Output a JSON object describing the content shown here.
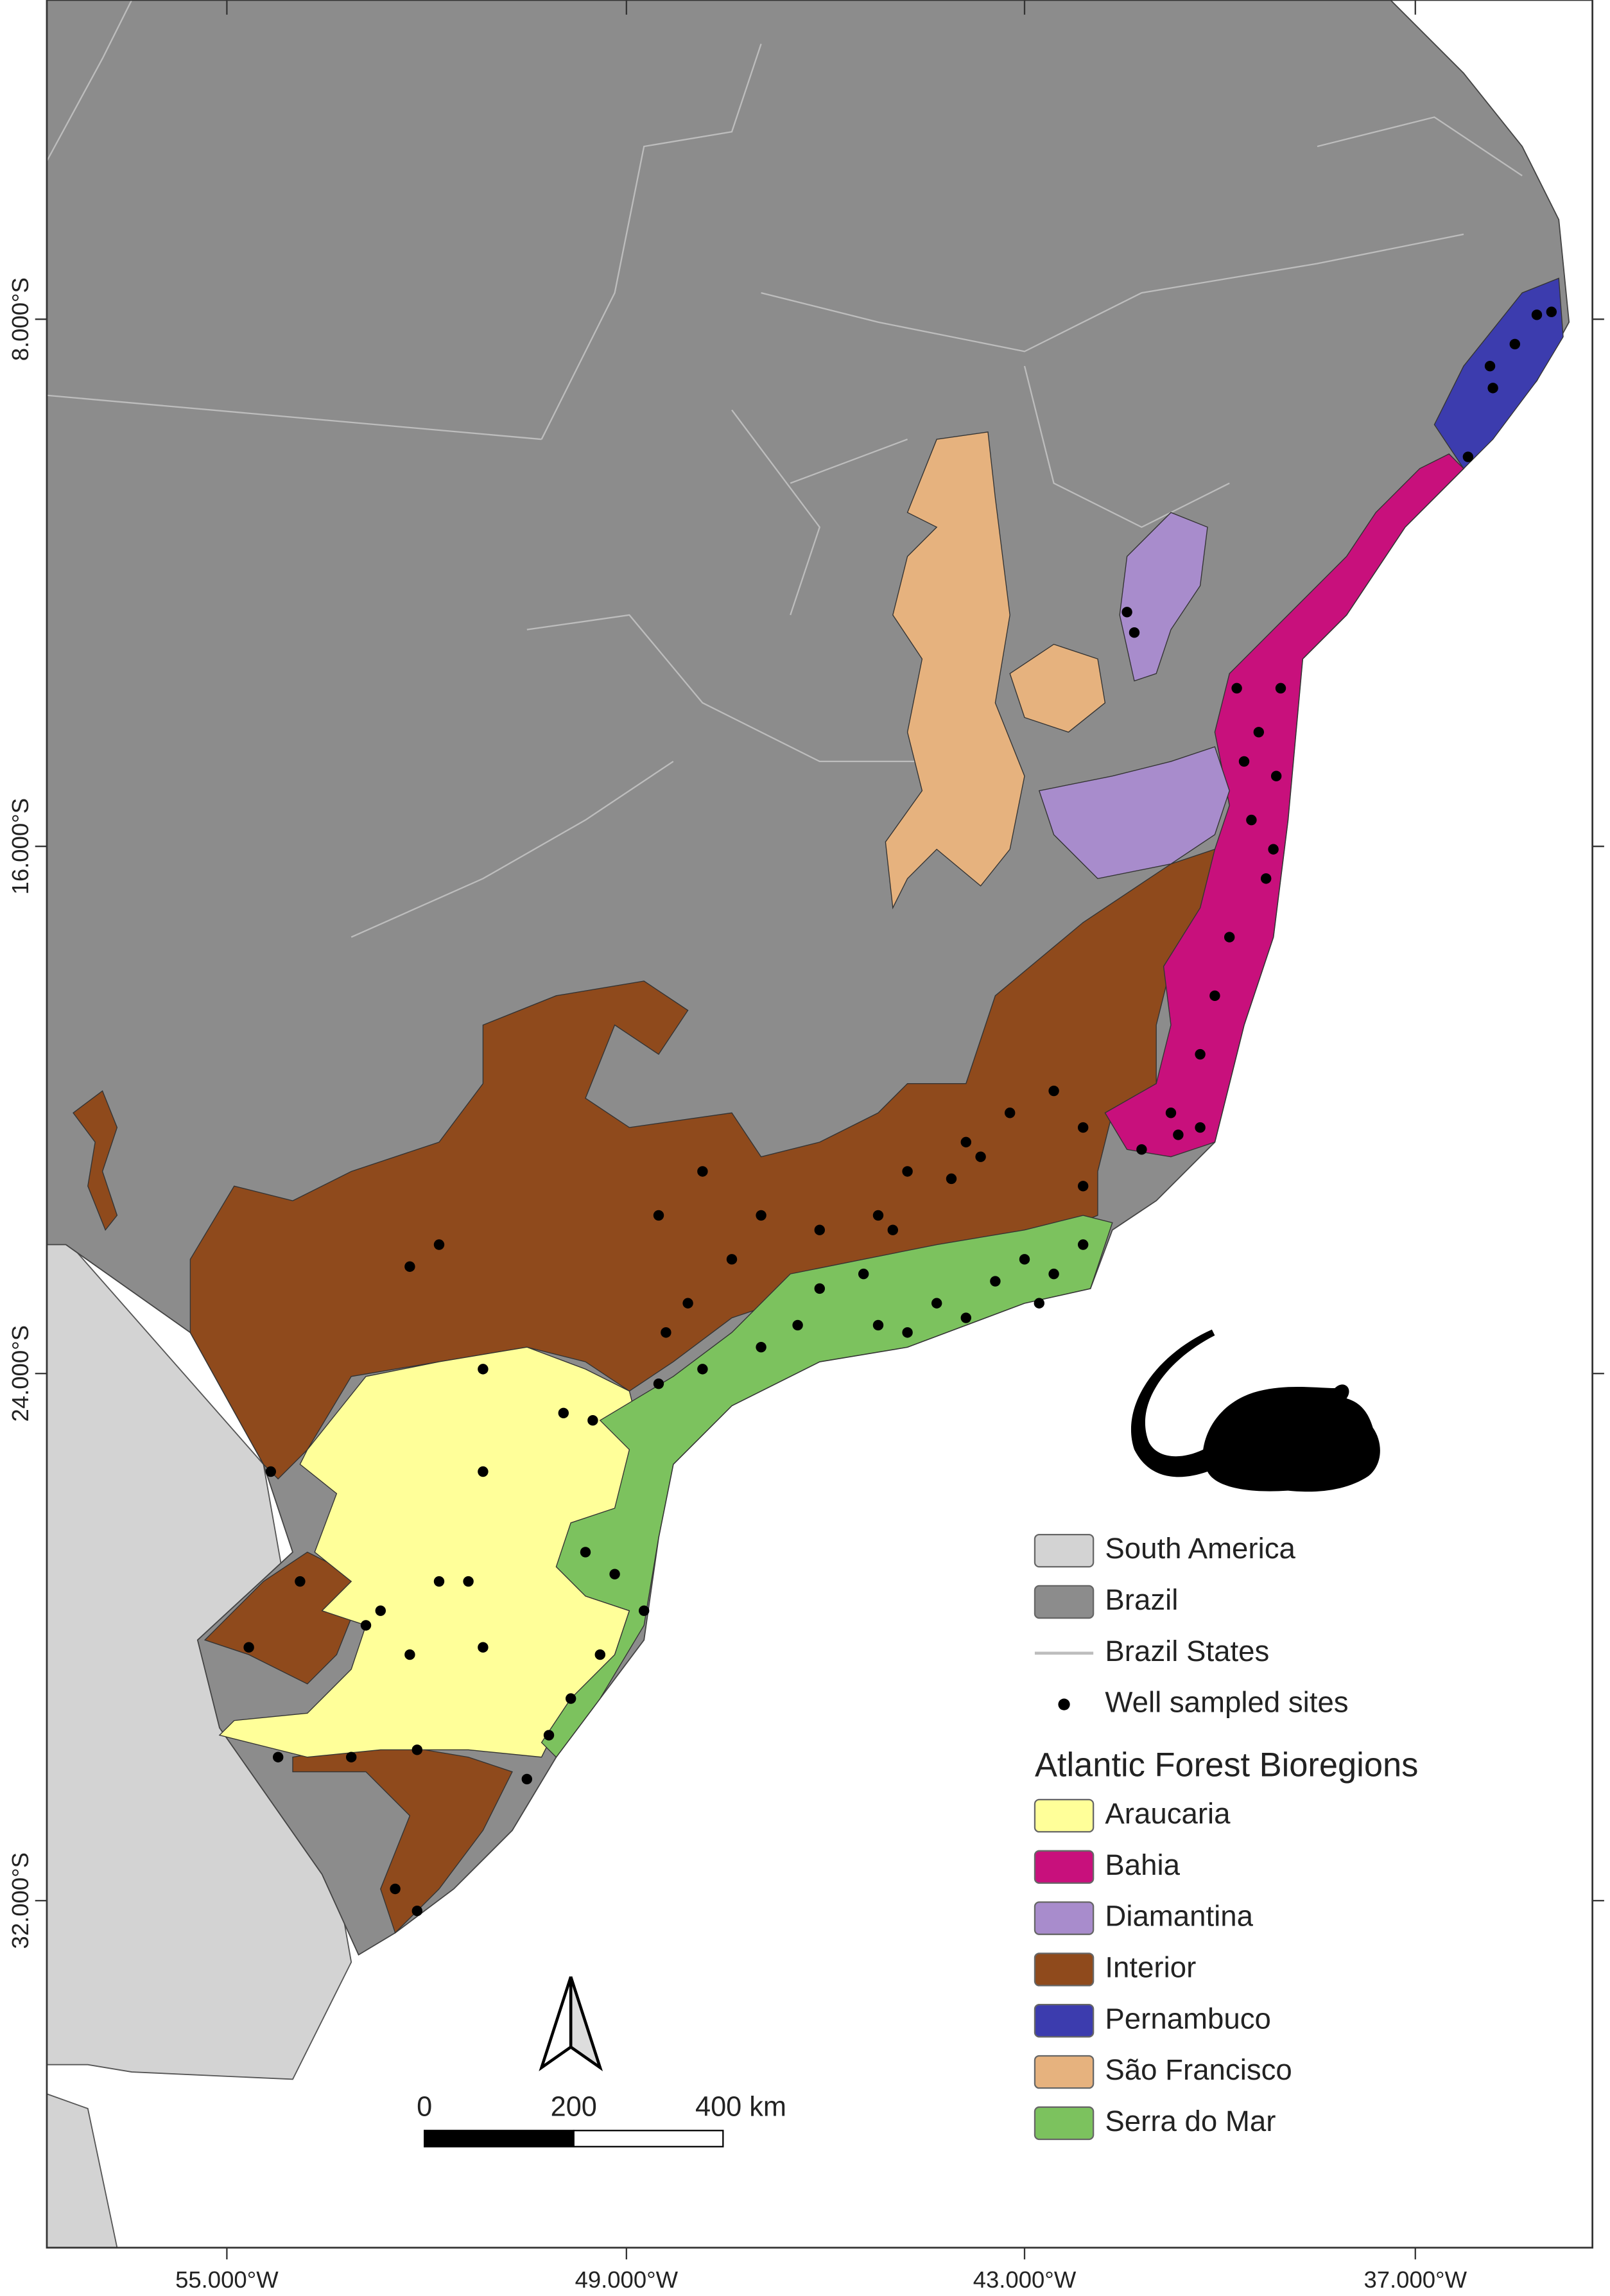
{
  "x_axis": {
    "labels": [
      "55.000°W",
      "49.000°W",
      "43.000°W",
      "37.000°W"
    ]
  },
  "y_axis": {
    "labels": [
      "8.000°S",
      "16.000°S",
      "24.000°S",
      "32.000°S"
    ]
  },
  "legend": {
    "items": [
      {
        "name": "South America",
        "color": "#d3d3d3"
      },
      {
        "name": "Brazil",
        "color": "#8c8c8c"
      },
      {
        "name": "Brazil States",
        "color": "#bdbdbd"
      },
      {
        "name": "Well sampled sites",
        "color": "#000000"
      }
    ],
    "bioregions_title": "Atlantic Forest Bioregions",
    "bioregions": [
      {
        "name": "Araucaria",
        "color": "#ffff99"
      },
      {
        "name": "Bahia",
        "color": "#c8107c"
      },
      {
        "name": "Diamantina",
        "color": "#a88ccc"
      },
      {
        "name": "Interior",
        "color": "#8f4a1c"
      },
      {
        "name": "Pernambuco",
        "color": "#3c3cae"
      },
      {
        "name": "São Francisco",
        "color": "#e6b27e"
      },
      {
        "name": "Serra do Mar",
        "color": "#7cc25e"
      }
    ]
  },
  "scale_bar": {
    "labels": [
      "0",
      "200",
      "400 km"
    ]
  }
}
